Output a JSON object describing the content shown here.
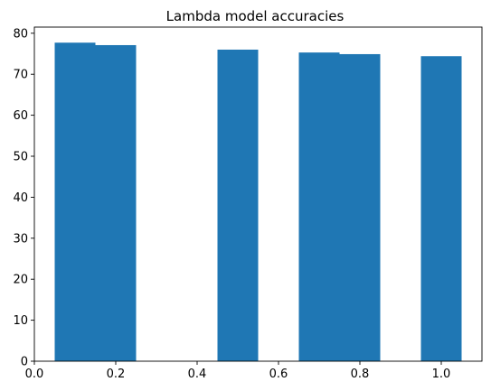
{
  "chart_data": {
    "type": "bar",
    "title": "Lambda model accuracies",
    "xlabel": "",
    "ylabel": "",
    "xlim": [
      0.0,
      1.1
    ],
    "ylim": [
      0,
      81.5
    ],
    "xticks": [
      0.0,
      0.2,
      0.4,
      0.6,
      0.8,
      1.0
    ],
    "xtick_labels": [
      "0.0",
      "0.2",
      "0.4",
      "0.6",
      "0.8",
      "1.0"
    ],
    "yticks": [
      0,
      10,
      20,
      30,
      40,
      50,
      60,
      70,
      80
    ],
    "ytick_labels": [
      "0",
      "10",
      "20",
      "30",
      "40",
      "50",
      "60",
      "70",
      "80"
    ],
    "bar_width": 0.1,
    "x": [
      0.1,
      0.2,
      0.5,
      0.7,
      0.8,
      1.0
    ],
    "values": [
      77.7,
      77.1,
      76.0,
      75.3,
      74.9,
      74.4
    ],
    "bar_color": "#1f77b4",
    "grid": false,
    "legend": "none"
  }
}
